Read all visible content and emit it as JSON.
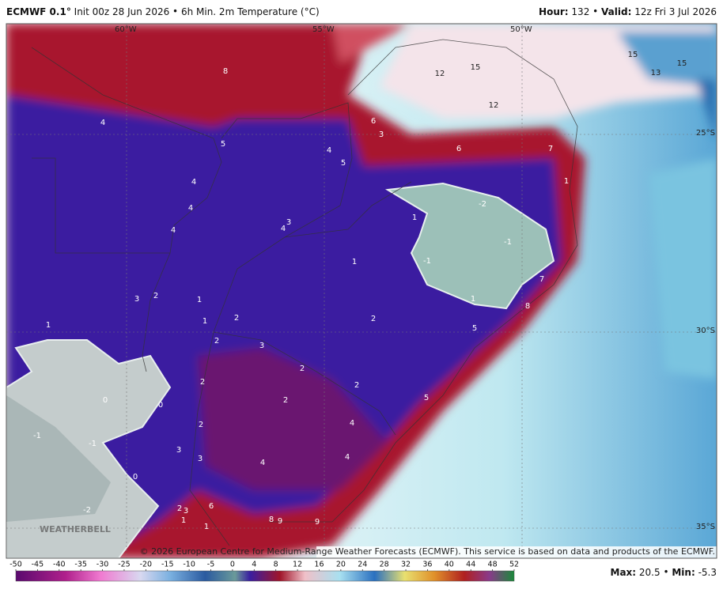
{
  "header": {
    "model": "ECMWF 0.1°",
    "init": "Init 00z 28 Jun 2026",
    "field": "6h Min. 2m Temperature (°C)",
    "hour_label": "Hour:",
    "hour": "132",
    "valid_label": "Valid:",
    "valid": "12z Fri 3 Jul 2026"
  },
  "map": {
    "longitude_labels": [
      "60°W",
      "55°W",
      "50°W"
    ],
    "latitude_labels": [
      "25°S",
      "30°S",
      "35°S"
    ],
    "contour_labels": [
      "4",
      "8",
      "5",
      "4",
      "4",
      "4",
      "3",
      "4",
      "4",
      "5",
      "6",
      "3",
      "6",
      "7",
      "12",
      "15",
      "12",
      "15",
      "15",
      "13",
      "-2",
      "-1",
      "-1",
      "1",
      "1",
      "7",
      "8",
      "5",
      "2",
      "3",
      "2",
      "1",
      "1",
      "2",
      "2",
      "3",
      "2",
      "2",
      "2",
      "2",
      "5",
      "4",
      "2",
      "4",
      "4",
      "3",
      "3",
      "6",
      "2",
      "3",
      "1",
      "1",
      "8",
      "9",
      "9",
      "1",
      "0",
      "0",
      "-1",
      "-1",
      "0",
      "-2",
      "1",
      "1"
    ],
    "watermark": "WEATHERBELL",
    "copyright": "© 2026 European Centre for Medium-Range Weather Forecasts (ECMWF). This service is based on data and products of the ECMWF."
  },
  "colorbar": {
    "ticks": [
      -50,
      -45,
      -40,
      -35,
      -30,
      -25,
      -20,
      -15,
      -10,
      -5,
      0,
      4,
      8,
      12,
      16,
      20,
      24,
      28,
      32,
      36,
      40,
      44,
      48,
      52
    ]
  },
  "footer": {
    "max_label": "Max:",
    "max": "20.5",
    "min_label": "Min:",
    "min": "-5.3"
  }
}
